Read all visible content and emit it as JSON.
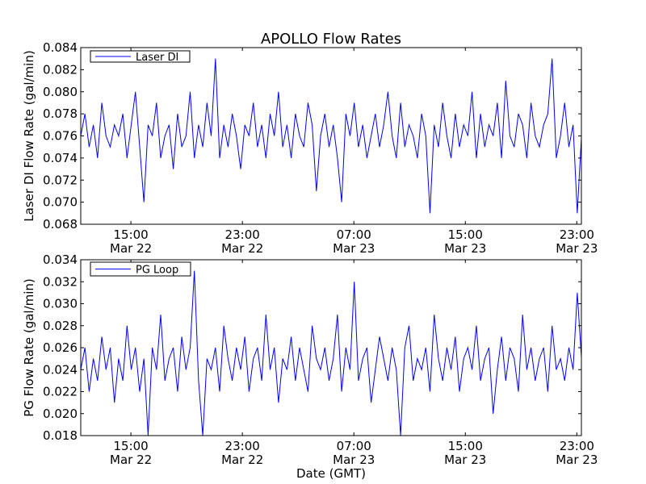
{
  "chart_data": [
    {
      "type": "line",
      "title": "APOLLO Flow Rates",
      "ylabel": "Laser DI Flow Rate (gal/min)",
      "xlabel": "",
      "ylim": [
        0.068,
        0.084
      ],
      "yticks": [
        "0.068",
        "0.070",
        "0.072",
        "0.074",
        "0.076",
        "0.078",
        "0.080",
        "0.082",
        "0.084"
      ],
      "xlim_hours": [
        11.4,
        47.33
      ],
      "x_start_hour": 11.4,
      "x_step_hours": 0.302,
      "xticks": [
        {
          "hour": 15,
          "time": "15:00",
          "date": "Mar 22"
        },
        {
          "hour": 23,
          "time": "23:00",
          "date": "Mar 22"
        },
        {
          "hour": 31,
          "time": "07:00",
          "date": "Mar 23"
        },
        {
          "hour": 39,
          "time": "15:00",
          "date": "Mar 23"
        },
        {
          "hour": 47,
          "time": "23:00",
          "date": "Mar 23"
        }
      ],
      "series": [
        {
          "name": "Laser DI",
          "color": "#0000ff",
          "values": [
            0.076,
            0.078,
            0.075,
            0.077,
            0.074,
            0.079,
            0.076,
            0.075,
            0.077,
            0.076,
            0.078,
            0.074,
            0.077,
            0.08,
            0.075,
            0.07,
            0.077,
            0.076,
            0.079,
            0.074,
            0.076,
            0.077,
            0.073,
            0.078,
            0.075,
            0.076,
            0.08,
            0.074,
            0.077,
            0.075,
            0.079,
            0.076,
            0.083,
            0.074,
            0.077,
            0.075,
            0.078,
            0.076,
            0.073,
            0.077,
            0.076,
            0.079,
            0.075,
            0.077,
            0.074,
            0.078,
            0.076,
            0.08,
            0.075,
            0.077,
            0.074,
            0.078,
            0.076,
            0.075,
            0.079,
            0.077,
            0.071,
            0.076,
            0.078,
            0.075,
            0.077,
            0.074,
            0.07,
            0.078,
            0.076,
            0.079,
            0.075,
            0.077,
            0.074,
            0.076,
            0.078,
            0.075,
            0.077,
            0.08,
            0.076,
            0.074,
            0.079,
            0.075,
            0.077,
            0.076,
            0.074,
            0.078,
            0.076,
            0.069,
            0.077,
            0.075,
            0.079,
            0.076,
            0.074,
            0.078,
            0.075,
            0.077,
            0.076,
            0.08,
            0.074,
            0.078,
            0.075,
            0.077,
            0.076,
            0.079,
            0.074,
            0.081,
            0.076,
            0.075,
            0.078,
            0.077,
            0.074,
            0.079,
            0.076,
            0.075,
            0.077,
            0.078,
            0.083,
            0.074,
            0.076,
            0.079,
            0.075,
            0.077,
            0.069,
            0.076
          ]
        }
      ],
      "legend": "top-left"
    },
    {
      "type": "line",
      "ylabel": "PG Flow Rate (gal/min)",
      "xlabel": "Date (GMT)",
      "ylim": [
        0.018,
        0.034
      ],
      "yticks": [
        "0.018",
        "0.020",
        "0.022",
        "0.024",
        "0.026",
        "0.028",
        "0.030",
        "0.032",
        "0.034"
      ],
      "xlim_hours": [
        11.4,
        47.33
      ],
      "x_start_hour": 11.4,
      "x_step_hours": 0.302,
      "xticks": [
        {
          "hour": 15,
          "time": "15:00",
          "date": "Mar 22"
        },
        {
          "hour": 23,
          "time": "23:00",
          "date": "Mar 22"
        },
        {
          "hour": 31,
          "time": "07:00",
          "date": "Mar 23"
        },
        {
          "hour": 39,
          "time": "15:00",
          "date": "Mar 23"
        },
        {
          "hour": 47,
          "time": "23:00",
          "date": "Mar 23"
        }
      ],
      "series": [
        {
          "name": "PG Loop",
          "color": "#0000ff",
          "values": [
            0.024,
            0.026,
            0.022,
            0.025,
            0.023,
            0.027,
            0.024,
            0.026,
            0.021,
            0.025,
            0.023,
            0.028,
            0.024,
            0.026,
            0.022,
            0.025,
            0.018,
            0.026,
            0.024,
            0.029,
            0.023,
            0.025,
            0.026,
            0.022,
            0.027,
            0.024,
            0.026,
            0.033,
            0.023,
            0.018,
            0.025,
            0.024,
            0.026,
            0.022,
            0.028,
            0.025,
            0.023,
            0.026,
            0.024,
            0.027,
            0.022,
            0.025,
            0.026,
            0.023,
            0.029,
            0.024,
            0.026,
            0.021,
            0.025,
            0.024,
            0.027,
            0.023,
            0.026,
            0.024,
            0.022,
            0.028,
            0.025,
            0.024,
            0.026,
            0.023,
            0.025,
            0.029,
            0.022,
            0.026,
            0.024,
            0.032,
            0.023,
            0.025,
            0.026,
            0.021,
            0.024,
            0.027,
            0.025,
            0.023,
            0.026,
            0.024,
            0.018,
            0.026,
            0.028,
            0.023,
            0.025,
            0.024,
            0.026,
            0.022,
            0.029,
            0.025,
            0.023,
            0.026,
            0.024,
            0.027,
            0.022,
            0.025,
            0.026,
            0.024,
            0.028,
            0.023,
            0.025,
            0.026,
            0.02,
            0.024,
            0.027,
            0.023,
            0.026,
            0.025,
            0.022,
            0.029,
            0.024,
            0.026,
            0.023,
            0.025,
            0.026,
            0.022,
            0.028,
            0.024,
            0.025,
            0.023,
            0.026,
            0.024,
            0.031,
            0.025
          ]
        }
      ],
      "legend": "top-left"
    }
  ]
}
